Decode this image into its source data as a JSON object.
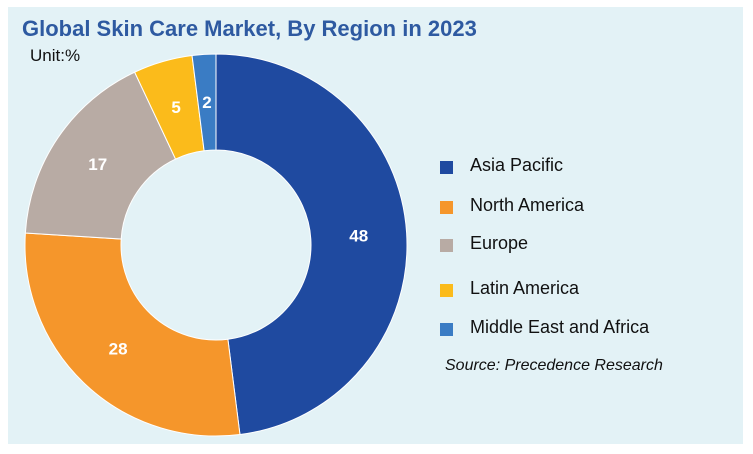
{
  "chart_data": {
    "type": "pie",
    "title": "Global Skin Care Market, By Region in 2023",
    "unit_label": "Unit:%",
    "categories": [
      "Asia Pacific",
      "North America",
      "Europe",
      "Latin America",
      "Middle East and Africa"
    ],
    "values": [
      48,
      28,
      17,
      5,
      2
    ],
    "colors": [
      "#1f4aa0",
      "#f5962b",
      "#b8aba4",
      "#fbbb1b",
      "#3a7cc4"
    ],
    "labels": [
      "48",
      "28",
      "17",
      "5",
      "2"
    ],
    "donut": true,
    "legend_position": "right",
    "source": "Source: Precedence Research"
  }
}
